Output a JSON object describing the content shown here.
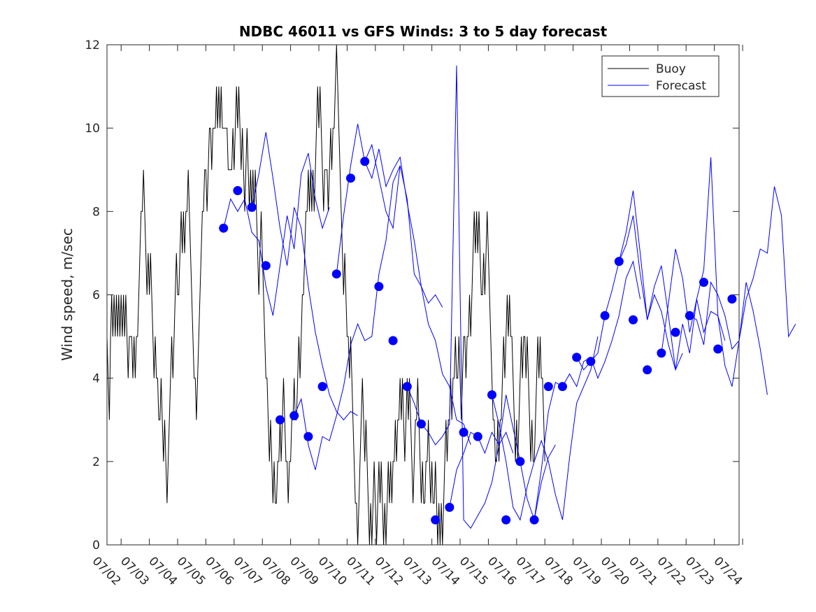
{
  "chart_data": {
    "type": "line",
    "title": "NDBC 46011 vs GFS Winds: 3 to 5 day forecast",
    "xlabel": "",
    "ylabel": "Wind speed, m/sec",
    "ylim": [
      0,
      12
    ],
    "yticks": [
      0,
      2,
      4,
      6,
      8,
      10,
      12
    ],
    "xlim": [
      "2015-07-01T12:00",
      "2015-07-23T21:00"
    ],
    "xticks": [
      "07/02",
      "07/03",
      "07/04",
      "07/05",
      "07/06",
      "07/07",
      "07/08",
      "07/09",
      "07/10",
      "07/11",
      "07/12",
      "07/13",
      "07/14",
      "07/15",
      "07/16",
      "07/17",
      "07/18",
      "07/19",
      "07/20",
      "07/21",
      "07/22",
      "07/23",
      "07/24"
    ],
    "grid": false,
    "legend": {
      "position": "top-right",
      "entries": [
        "Buoy",
        "Forecast"
      ]
    },
    "colors": {
      "buoy": "#000000",
      "forecast": "#0000ff"
    },
    "series": [
      {
        "name": "Buoy",
        "style": "black line, hourly integer m/s readings",
        "x_start": "2015-07-01T12:00",
        "step_hours": 1,
        "values": [
          5,
          4,
          3,
          5,
          6,
          5,
          6,
          5,
          6,
          5,
          6,
          5,
          6,
          5,
          6,
          5,
          6,
          5,
          4,
          5,
          5,
          5,
          4,
          5,
          4,
          5,
          5,
          6,
          7,
          8,
          8,
          9,
          8,
          7,
          6,
          7,
          6,
          7,
          6,
          5,
          4,
          5,
          4,
          4,
          3,
          3,
          4,
          3,
          2,
          3,
          2,
          1,
          2,
          3,
          4,
          5,
          4,
          5,
          6,
          7,
          6,
          6,
          7,
          8,
          7,
          8,
          7,
          8,
          8,
          9,
          8,
          7,
          6,
          5,
          4,
          4,
          3,
          4,
          5,
          6,
          7,
          8,
          8,
          9,
          9,
          8,
          9,
          10,
          10,
          9,
          10,
          10,
          10,
          11,
          10,
          11,
          10,
          11,
          10,
          10,
          10,
          10,
          10,
          9,
          9,
          9,
          9,
          10,
          9,
          10,
          11,
          10,
          11,
          10,
          9,
          10,
          9,
          8,
          9,
          10,
          9,
          8,
          9,
          8,
          9,
          8,
          9,
          8,
          7,
          6,
          7,
          8,
          7,
          6,
          5,
          4,
          4,
          3,
          2,
          3,
          2,
          1,
          2,
          1,
          1,
          2,
          2,
          3,
          2,
          3,
          4,
          3,
          2,
          2,
          1,
          2,
          2,
          3,
          3,
          4,
          3,
          3,
          4,
          5,
          4,
          5,
          6,
          6,
          7,
          8,
          8,
          9,
          8,
          9,
          8,
          9,
          8,
          9,
          10,
          11,
          10,
          11,
          10,
          9,
          8,
          9,
          9,
          9,
          8,
          9,
          10,
          9,
          10,
          10,
          11,
          12,
          11,
          10,
          9,
          8,
          7,
          6,
          7,
          6,
          5,
          5,
          4,
          5,
          4,
          3,
          2,
          1,
          1,
          0,
          1,
          2,
          3,
          4,
          3,
          2,
          3,
          2,
          1,
          0,
          1,
          0,
          1,
          2,
          1,
          0,
          1,
          2,
          1,
          2,
          1,
          0,
          1,
          0,
          1,
          2,
          1,
          2,
          1,
          2,
          2,
          3,
          2,
          3,
          3,
          4,
          3,
          4,
          3,
          2,
          3,
          4,
          3,
          4,
          3,
          2,
          1,
          2,
          3,
          3,
          4,
          3,
          2,
          1,
          2,
          1,
          1,
          2,
          2,
          3,
          2,
          1,
          2,
          1,
          1,
          2,
          1,
          0,
          1,
          0,
          1,
          0,
          1,
          2,
          3,
          2,
          3,
          3,
          4,
          3,
          4,
          4,
          5,
          4,
          4,
          5,
          4,
          3,
          4,
          5,
          5,
          4,
          5,
          5,
          6,
          5,
          6,
          7,
          8,
          7,
          8,
          7,
          8,
          7,
          6,
          6,
          7,
          6,
          7,
          8,
          7,
          6,
          5,
          4,
          3,
          3,
          2,
          2,
          3,
          2,
          3,
          3,
          4,
          5,
          4,
          5,
          6,
          5,
          6,
          5,
          5,
          4,
          3,
          2,
          3,
          2,
          3,
          4,
          5,
          4,
          5,
          5,
          4,
          5,
          4,
          3,
          2,
          3,
          2,
          2,
          3,
          4,
          5,
          4,
          5,
          4,
          4,
          3,
          2
        ]
      },
      {
        "name": "Forecast",
        "style": "blue markers every 12 hours",
        "x": [
          "07/05 15:00",
          "07/06 03:00",
          "07/06 15:00",
          "07/07 03:00",
          "07/07 15:00",
          "07/08 03:00",
          "07/08 15:00",
          "07/09 03:00",
          "07/09 15:00",
          "07/10 03:00",
          "07/10 15:00",
          "07/11 03:00",
          "07/11 15:00",
          "07/12 03:00",
          "07/12 15:00",
          "07/13 03:00",
          "07/13 15:00",
          "07/14 03:00",
          "07/14 15:00",
          "07/15 03:00",
          "07/15 15:00",
          "07/16 03:00",
          "07/16 15:00",
          "07/17 03:00",
          "07/17 15:00",
          "07/18 03:00",
          "07/18 15:00",
          "07/19 03:00",
          "07/19 15:00",
          "07/20 03:00",
          "07/20 15:00",
          "07/21 03:00",
          "07/21 15:00",
          "07/22 03:00",
          "07/22 15:00",
          "07/23 03:00",
          "07/23 15:00"
        ],
        "values": [
          7.6,
          8.5,
          8.1,
          6.7,
          3.0,
          3.1,
          2.6,
          3.8,
          6.5,
          8.8,
          9.2,
          6.2,
          4.9,
          3.8,
          2.9,
          0.6,
          0.9,
          2.7,
          2.6,
          3.6,
          0.6,
          2.0,
          0.6,
          3.8,
          3.8,
          4.5,
          4.4,
          5.5,
          6.8,
          5.4,
          4.2,
          4.6,
          5.1,
          5.5,
          6.3,
          4.7,
          5.9
        ]
      },
      {
        "name": "Forecast",
        "style": "thin blue lines: overlapping forecast runs",
        "runs": [
          {
            "x_start": "07/05 15:00",
            "step_hours": 6,
            "values": [
              7.6,
              8.3,
              8.0,
              8.3,
              7.5,
              7.3,
              6.2,
              5.5,
              6.7,
              7.9,
              7.1,
              8.9,
              9.4,
              8.3,
              7.6,
              8.1
            ]
          },
          {
            "x_start": "07/06 15:00",
            "step_hours": 6,
            "values": [
              8.1,
              8.9,
              9.9,
              8.8,
              7.6,
              6.7,
              8.1,
              7.6,
              6.2,
              5.1,
              4.3,
              3.6,
              3.2,
              3.0,
              3.2,
              3.1
            ]
          },
          {
            "x_start": "07/08 03:00",
            "step_hours": 6,
            "values": [
              3.1,
              3.5,
              2.4,
              1.8,
              2.6,
              2.5,
              3.1,
              3.8,
              4.8,
              5.3,
              4.9,
              5.0,
              6.5,
              7.3,
              8.7,
              9.1
            ]
          },
          {
            "x_start": "07/09 15:00",
            "step_hours": 6,
            "values": [
              6.5,
              7.9,
              9.1,
              10.1,
              9.2,
              8.8,
              9.5,
              8.6,
              9.0,
              9.3,
              8.2,
              7.3,
              6.2,
              5.8,
              6.0,
              5.7
            ]
          },
          {
            "x_start": "07/10 15:00",
            "step_hours": 6,
            "values": [
              9.2,
              9.6,
              8.8,
              8.0,
              7.6,
              9.1,
              8.3,
              6.5,
              6.2,
              5.3,
              4.9,
              4.1,
              3.8,
              3.0,
              2.9,
              2.4
            ]
          },
          {
            "x_start": "07/12 03:00",
            "step_hours": 6,
            "values": [
              3.8,
              3.4,
              2.9,
              2.7,
              2.4,
              2.6,
              2.9,
              11.5,
              0.6,
              0.4,
              0.7,
              1.0,
              1.5,
              2.4,
              2.7,
              2.2
            ]
          },
          {
            "x_start": "07/13 15:00",
            "step_hours": 6,
            "values": [
              0.9,
              1.8,
              2.2,
              2.7,
              2.6,
              2.2,
              2.7,
              2.4,
              3.6,
              2.8,
              2.0,
              1.1,
              0.6,
              1.5,
              2.1,
              2.4
            ]
          },
          {
            "x_start": "07/15 03:00",
            "step_hours": 6,
            "values": [
              3.6,
              2.9,
              2.0,
              0.9,
              0.6,
              1.4,
              2.0,
              2.5,
              2.0,
              1.2,
              0.6,
              2.1,
              3.4,
              3.8,
              4.2,
              5.0
            ]
          },
          {
            "x_start": "07/16 15:00",
            "step_hours": 6,
            "values": [
              0.6,
              1.8,
              3.2,
              3.9,
              3.8,
              4.1,
              3.8,
              4.4,
              4.5,
              4.0,
              4.4,
              4.9,
              5.5,
              6.4,
              6.8,
              5.9
            ]
          },
          {
            "x_start": "07/18 03:00",
            "step_hours": 6,
            "values": [
              4.5,
              4.2,
              4.4,
              4.6,
              5.5,
              6.1,
              6.8,
              7.2,
              7.9,
              6.5,
              5.4,
              6.0,
              5.6,
              4.8,
              4.2,
              4.6
            ]
          },
          {
            "x_start": "07/19 15:00",
            "step_hours": 6,
            "values": [
              6.8,
              7.5,
              8.5,
              7.0,
              5.4,
              6.2,
              6.7,
              5.5,
              4.2,
              5.3,
              4.6,
              5.9,
              5.1,
              5.6,
              5.5,
              4.9
            ]
          },
          {
            "x_start": "07/21 03:00",
            "step_hours": 6,
            "values": [
              4.6,
              5.8,
              7.1,
              6.4,
              5.1,
              5.9,
              6.6,
              9.3,
              5.5,
              4.3,
              3.8,
              4.9,
              6.3,
              5.6,
              4.7,
              3.6
            ]
          },
          {
            "x_start": "07/22 03:00",
            "step_hours": 6,
            "values": [
              5.5,
              5.4,
              4.8,
              6.3,
              6.0,
              5.5,
              4.7,
              4.9,
              5.9,
              6.4,
              7.1,
              7.0,
              8.6,
              7.9,
              5.0,
              5.3
            ]
          }
        ]
      }
    ]
  }
}
